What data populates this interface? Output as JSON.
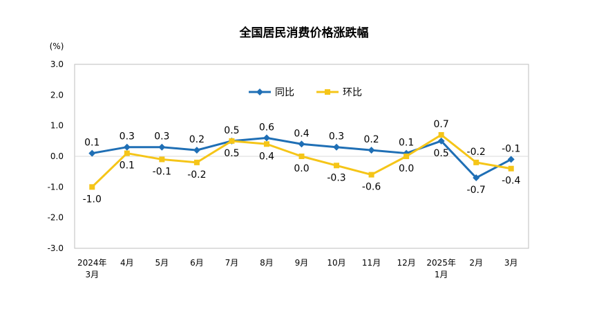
{
  "chart_data": {
    "type": "line",
    "title": "全国居民消费价格涨跌幅",
    "unit": "(%)",
    "y_ticks": [
      "3.0",
      "2.0",
      "1.0",
      "0.0",
      "-1.0",
      "-2.0",
      "-3.0"
    ],
    "ylim": [
      -3,
      3
    ],
    "categories": [
      [
        "2024年",
        "3月"
      ],
      [
        "4月"
      ],
      [
        "5月"
      ],
      [
        "6月"
      ],
      [
        "7月"
      ],
      [
        "8月"
      ],
      [
        "9月"
      ],
      [
        "10月"
      ],
      [
        "11月"
      ],
      [
        "12月"
      ],
      [
        "2025年",
        "1月"
      ],
      [
        "2月"
      ],
      [
        "3月"
      ]
    ],
    "series": [
      {
        "name": "同比",
        "color": "#1f6fb5",
        "marker": "diamond",
        "values": [
          0.1,
          0.3,
          0.3,
          0.2,
          0.5,
          0.6,
          0.4,
          0.3,
          0.2,
          0.1,
          0.5,
          -0.7,
          -0.1
        ],
        "labels": [
          "0.1",
          "0.3",
          "0.3",
          "0.2",
          "0.5",
          "0.6",
          "0.4",
          "0.3",
          "0.2",
          "0.1",
          "0.5",
          "-0.7",
          "-0.1"
        ]
      },
      {
        "name": "环比",
        "color": "#f5c518",
        "marker": "square",
        "values": [
          -1.0,
          0.1,
          -0.1,
          -0.2,
          0.5,
          0.4,
          0.0,
          -0.3,
          -0.6,
          0.0,
          0.7,
          -0.2,
          -0.4
        ],
        "labels": [
          "-1.0",
          "0.1",
          "-0.1",
          "-0.2",
          "0.5",
          "0.4",
          "0.0",
          "-0.3",
          "-0.6",
          "0.0",
          "0.7",
          "-0.2",
          "-0.4"
        ]
      }
    ],
    "grid": false,
    "legend": "top-center"
  }
}
